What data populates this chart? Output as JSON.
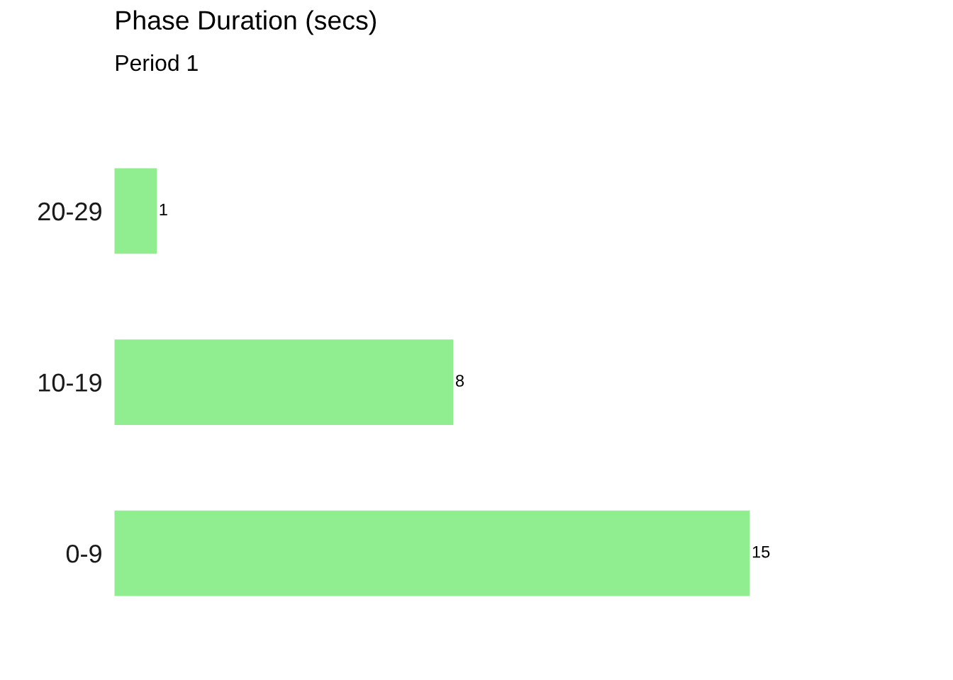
{
  "chart_data": {
    "type": "bar",
    "orientation": "horizontal",
    "title": "Phase Duration (secs)",
    "subtitle": "Period 1",
    "categories": [
      "20-29",
      "10-19",
      "0-9"
    ],
    "values": [
      1,
      8,
      15
    ],
    "color": "#90ee90",
    "data_labels": true,
    "tick_labels": "y",
    "grid": false,
    "legend": false
  }
}
